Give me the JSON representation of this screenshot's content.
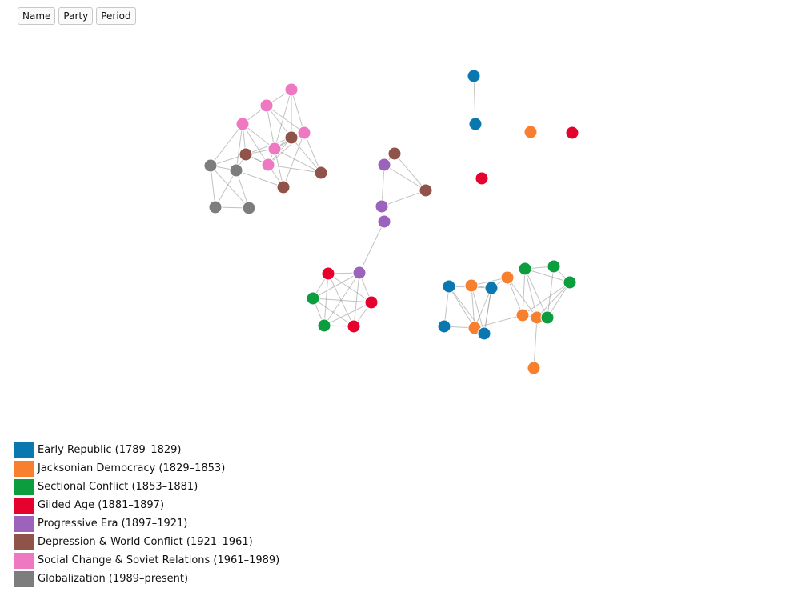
{
  "toolbar": {
    "buttons": [
      {
        "id": "name",
        "label": "Name"
      },
      {
        "id": "party",
        "label": "Party"
      },
      {
        "id": "period",
        "label": "Period"
      }
    ]
  },
  "legend": [
    {
      "label": "Early Republic (1789–1829)",
      "color": "#0a77b0"
    },
    {
      "label": "Jacksonian Democracy (1829–1853)",
      "color": "#f77f2e"
    },
    {
      "label": "Sectional Conflict (1853–1881)",
      "color": "#0b9d3e"
    },
    {
      "label": "Gilded Age (1881–1897)",
      "color": "#e5022c"
    },
    {
      "label": "Progressive Era (1897–1921)",
      "color": "#9b63bc"
    },
    {
      "label": "Depression & World Conflict (1921–1961)",
      "color": "#8f5349"
    },
    {
      "label": "Social Change & Soviet Relations (1961–1989)",
      "color": "#ee78c2"
    },
    {
      "label": "Globalization (1989–present)",
      "color": "#7d7d7d"
    }
  ]
}
